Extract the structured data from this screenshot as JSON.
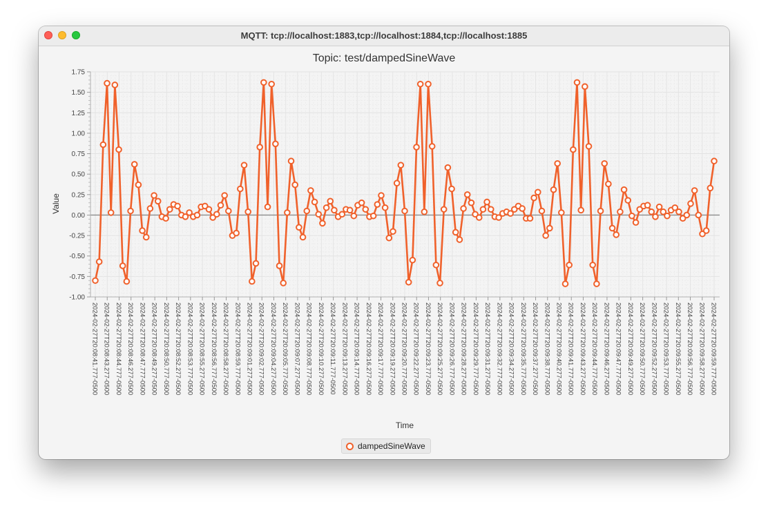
{
  "window": {
    "title": "MQTT: tcp://localhost:1883,tcp://localhost:1884,tcp://localhost:1885"
  },
  "colors": {
    "series": "#f0612b",
    "background": "#f4f4f4",
    "zero_line": "#8a8a8a"
  },
  "chart_data": {
    "type": "line",
    "title": "Topic: test/dampedSineWave",
    "xlabel": "Time",
    "ylabel": "Value",
    "ylim": [
      -1.0,
      1.75
    ],
    "y_ticks": [
      "1.75",
      "1.50",
      "1.25",
      "1.00",
      "0.75",
      "0.50",
      "0.25",
      "0.00",
      "-0.25",
      "-0.50",
      "-0.75",
      "-1.00"
    ],
    "grid": true,
    "legend_position": "bottom-center",
    "x_tick_labels": [
      "2024-02-27T20:08:41.777-0500",
      "2024-02-27T20:08:43.277-0500",
      "2024-02-27T20:08:44.777-0500",
      "2024-02-27T20:08:46.277-0500",
      "2024-02-27T20:08:47.777-0500",
      "2024-02-27T20:08:49.277-0500",
      "2024-02-27T20:08:50.777-0500",
      "2024-02-27T20:08:52.277-0500",
      "2024-02-27T20:08:53.777-0500",
      "2024-02-27T20:08:55.277-0500",
      "2024-02-27T20:08:56.777-0500",
      "2024-02-27T20:08:58.277-0500",
      "2024-02-27T20:08:59.777-0500",
      "2024-02-27T20:09:01.277-0500",
      "2024-02-27T20:09:02.777-0500",
      "2024-02-27T20:09:04.277-0500",
      "2024-02-27T20:09:05.777-0500",
      "2024-02-27T20:09:07.277-0500",
      "2024-02-27T20:09:08.777-0500",
      "2024-02-27T20:09:10.277-0500",
      "2024-02-27T20:09:11.777-0500",
      "2024-02-27T20:09:13.277-0500",
      "2024-02-27T20:09:14.777-0500",
      "2024-02-27T20:09:16.277-0500",
      "2024-02-27T20:09:17.777-0500",
      "2024-02-27T20:09:19.277-0500",
      "2024-02-27T20:09:20.777-0500",
      "2024-02-27T20:09:22.277-0500",
      "2024-02-27T20:09:23.777-0500",
      "2024-02-27T20:09:25.277-0500",
      "2024-02-27T20:09:26.777-0500",
      "2024-02-27T20:09:28.277-0500",
      "2024-02-27T20:09:29.777-0500",
      "2024-02-27T20:09:31.277-0500",
      "2024-02-27T20:09:32.777-0500",
      "2024-02-27T20:09:34.277-0500",
      "2024-02-27T20:09:35.777-0500",
      "2024-02-27T20:09:37.277-0500",
      "2024-02-27T20:09:38.777-0500",
      "2024-02-27T20:09:40.277-0500",
      "2024-02-27T20:09:41.777-0500",
      "2024-02-27T20:09:43.277-0500",
      "2024-02-27T20:09:44.777-0500",
      "2024-02-27T20:09:46.277-0500",
      "2024-02-27T20:09:47.777-0500",
      "2024-02-27T20:09:49.277-0500",
      "2024-02-27T20:09:50.777-0500",
      "2024-02-27T20:09:52.277-0500",
      "2024-02-27T20:09:53.777-0500",
      "2024-02-27T20:09:55.277-0500",
      "2024-02-27T20:09:56.777-0500",
      "2024-02-27T20:09:58.277-0500",
      "2024-02-27T20:09:59.777-0500"
    ],
    "series": [
      {
        "name": "dampedSineWave",
        "values": [
          -0.8,
          -0.57,
          0.86,
          1.61,
          0.03,
          1.59,
          0.8,
          -0.62,
          -0.81,
          0.05,
          0.62,
          0.37,
          -0.19,
          -0.27,
          0.08,
          0.24,
          0.17,
          -0.02,
          -0.04,
          0.07,
          0.13,
          0.11,
          0.0,
          -0.02,
          0.03,
          -0.02,
          0.0,
          0.1,
          0.11,
          0.07,
          -0.03,
          0.01,
          0.12,
          0.24,
          0.05,
          -0.25,
          -0.22,
          0.32,
          0.61,
          0.04,
          -0.81,
          -0.59,
          0.83,
          1.62,
          0.1,
          1.6,
          0.87,
          -0.62,
          -0.83,
          0.03,
          0.66,
          0.37,
          -0.15,
          -0.27,
          0.05,
          0.3,
          0.16,
          0.01,
          -0.1,
          0.09,
          0.17,
          0.06,
          -0.02,
          0.01,
          0.07,
          0.06,
          -0.01,
          0.12,
          0.15,
          0.07,
          -0.02,
          -0.01,
          0.13,
          0.24,
          0.09,
          -0.28,
          -0.2,
          0.39,
          0.61,
          0.05,
          -0.82,
          -0.55,
          0.83,
          1.6,
          0.04,
          1.6,
          0.84,
          -0.61,
          -0.83,
          0.07,
          0.58,
          0.32,
          -0.21,
          -0.3,
          0.08,
          0.25,
          0.15,
          0.01,
          -0.03,
          0.07,
          0.16,
          0.07,
          -0.02,
          -0.03,
          0.02,
          0.04,
          0.02,
          0.07,
          0.11,
          0.08,
          -0.04,
          -0.04,
          0.21,
          0.28,
          0.05,
          -0.25,
          -0.16,
          0.31,
          0.63,
          0.03,
          -0.84,
          -0.61,
          0.8,
          1.62,
          0.06,
          1.57,
          0.84,
          -0.61,
          -0.84,
          0.05,
          0.63,
          0.38,
          -0.16,
          -0.24,
          0.04,
          0.31,
          0.18,
          -0.01,
          -0.09,
          0.07,
          0.11,
          0.12,
          0.04,
          -0.02,
          0.1,
          0.04,
          -0.01,
          0.06,
          0.09,
          0.04,
          -0.04,
          0.0,
          0.14,
          0.3,
          0.0,
          -0.23,
          -0.19,
          0.33,
          0.66
        ]
      }
    ]
  }
}
